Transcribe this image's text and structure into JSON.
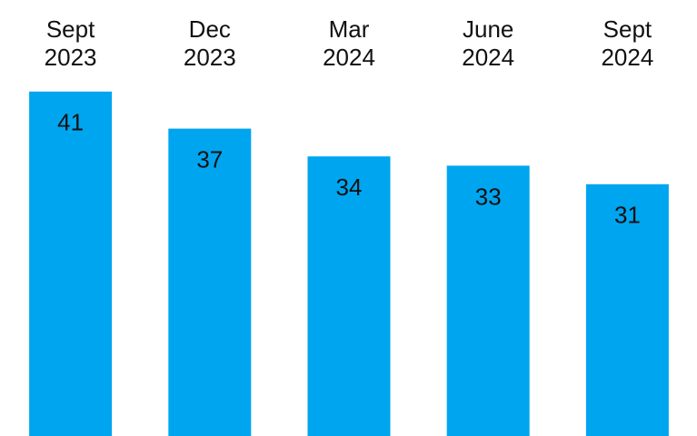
{
  "chart_data": {
    "type": "bar",
    "categories": [
      "Sept 2023",
      "Dec 2023",
      "Mar 2024",
      "June 2024",
      "Sept 2024"
    ],
    "values": [
      41,
      37,
      34,
      33,
      31
    ],
    "color": "#00a5ef"
  }
}
